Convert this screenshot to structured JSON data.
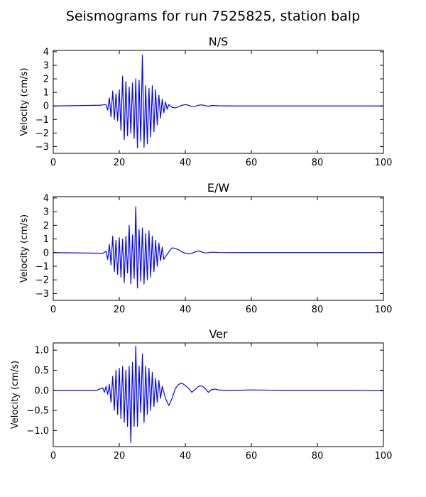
{
  "figure": {
    "title": "Seismograms for run 7525825, station balp"
  },
  "chart_data": [
    {
      "type": "line",
      "title": "N/S",
      "xlabel": "",
      "ylabel": "Velocity (cm/s)",
      "xlim": [
        0,
        100
      ],
      "ylim": [
        -3.5,
        4.1
      ],
      "xticks": [
        0,
        20,
        40,
        60,
        80,
        100
      ],
      "yticks": [
        -3,
        -2,
        -1,
        0,
        1,
        2,
        3,
        4
      ],
      "grid": false,
      "color": "#0000ff",
      "x": [
        0,
        14,
        16,
        16.5,
        17,
        17.5,
        18,
        18.5,
        19,
        19.5,
        20,
        20.5,
        21,
        21.5,
        22,
        22.5,
        23,
        23.5,
        24,
        24.5,
        25,
        25.5,
        26,
        26.5,
        27,
        27.5,
        28,
        28.5,
        29,
        29.5,
        30,
        30.5,
        31,
        31.5,
        32,
        32.5,
        33,
        33.5,
        34,
        34.5,
        35,
        36,
        37,
        38,
        39,
        40,
        41,
        42,
        43,
        44,
        45,
        46,
        47,
        48,
        50,
        55,
        60,
        70,
        80,
        90,
        100
      ],
      "y": [
        0,
        0.05,
        0.1,
        -0.3,
        0.6,
        -0.8,
        1.1,
        -1.0,
        0.9,
        -1.1,
        1.2,
        -1.8,
        2.2,
        -2.5,
        1.8,
        -2.2,
        1.4,
        -2.0,
        1.7,
        -2.4,
        2.0,
        -3.1,
        1.9,
        -2.6,
        3.75,
        -3.05,
        1.5,
        -2.8,
        1.3,
        -2.3,
        1.5,
        -1.9,
        1.2,
        -1.4,
        0.8,
        -0.9,
        0.5,
        -0.5,
        0.3,
        -0.25,
        0.1,
        -0.1,
        -0.15,
        -0.05,
        0.05,
        0.1,
        0.05,
        -0.05,
        -0.03,
        0.05,
        0.08,
        0.02,
        -0.02,
        0.03,
        0.01,
        0,
        0,
        0,
        0,
        0,
        0
      ]
    },
    {
      "type": "line",
      "title": "E/W",
      "xlabel": "",
      "ylabel": "Velocity (cm/s)",
      "xlim": [
        0,
        100
      ],
      "ylim": [
        -3.5,
        4.1
      ],
      "xticks": [
        0,
        20,
        40,
        60,
        80,
        100
      ],
      "yticks": [
        -3,
        -2,
        -1,
        0,
        1,
        2,
        3,
        4
      ],
      "grid": false,
      "color": "#0000ff",
      "x": [
        0,
        15,
        16,
        16.5,
        17,
        17.5,
        18,
        18.5,
        19,
        19.5,
        20,
        20.5,
        21,
        21.5,
        22,
        22.5,
        23,
        23.5,
        24,
        24.5,
        25,
        25.5,
        26,
        26.5,
        27,
        27.5,
        28,
        28.5,
        29,
        29.5,
        30,
        30.5,
        31,
        31.5,
        32,
        32.5,
        33,
        33.5,
        34,
        35,
        36,
        37,
        38,
        39,
        40,
        41,
        42,
        43,
        44,
        45,
        46,
        48,
        50,
        55,
        60,
        70,
        80,
        90,
        100
      ],
      "y": [
        0,
        -0.05,
        0.1,
        -0.5,
        0.6,
        -0.9,
        1.2,
        -1.4,
        0.9,
        -1.6,
        1.1,
        -1.8,
        1.0,
        -2.2,
        1.2,
        -1.5,
        2.0,
        -2.3,
        1.3,
        -1.9,
        3.35,
        -2.6,
        1.7,
        -2.1,
        1.8,
        -2.3,
        1.4,
        -2.0,
        1.6,
        -1.8,
        1.2,
        -1.4,
        0.9,
        -1.0,
        0.7,
        -0.6,
        0.4,
        -0.5,
        -0.3,
        0.05,
        0.35,
        0.3,
        0.2,
        0.05,
        -0.05,
        -0.1,
        -0.05,
        0.05,
        0.12,
        0.05,
        -0.03,
        0.03,
        0.01,
        0,
        0,
        0,
        0,
        0,
        0
      ]
    },
    {
      "type": "line",
      "title": "Ver",
      "xlabel": "",
      "ylabel": "Velocity (cm/s)",
      "xlim": [
        0,
        100
      ],
      "ylim": [
        -1.4,
        1.18
      ],
      "xticks": [
        0,
        20,
        40,
        60,
        80,
        100
      ],
      "yticks": [
        -1.0,
        -0.5,
        0.0,
        0.5,
        1.0
      ],
      "ytick_labels": [
        "−1.0",
        "−0.5",
        "0.0",
        "0.5",
        "1.0"
      ],
      "grid": false,
      "color": "#0000ff",
      "x": [
        0,
        13,
        15,
        15.5,
        16,
        16.5,
        17,
        17.5,
        18,
        18.5,
        19,
        19.5,
        20,
        20.5,
        21,
        21.5,
        22,
        22.5,
        23,
        23.5,
        24,
        24.5,
        25,
        25.5,
        26,
        26.5,
        27,
        27.5,
        28,
        28.5,
        29,
        29.5,
        30,
        30.5,
        31,
        31.5,
        32,
        32.5,
        33,
        34,
        35,
        36,
        37,
        38,
        39,
        40,
        41,
        42,
        43,
        44,
        45,
        46,
        47,
        48,
        49,
        50,
        52,
        55,
        60,
        70,
        80,
        90,
        100
      ],
      "y": [
        0,
        0,
        0.06,
        -0.05,
        0.1,
        -0.1,
        0.15,
        -0.3,
        0.35,
        -0.5,
        0.5,
        -0.6,
        0.55,
        -0.7,
        0.6,
        -0.8,
        0.5,
        -0.9,
        0.6,
        -1.3,
        0.7,
        -0.9,
        1.1,
        -0.9,
        0.6,
        -0.55,
        0.9,
        -0.8,
        0.6,
        -0.6,
        0.55,
        -0.5,
        0.45,
        -0.4,
        0.3,
        -0.3,
        0.25,
        -0.2,
        0.1,
        -0.2,
        -0.38,
        -0.2,
        0.05,
        0.15,
        0.18,
        0.12,
        0.05,
        -0.05,
        0.02,
        0.1,
        0.11,
        0.05,
        -0.05,
        0.02,
        0.03,
        0.01,
        0.0,
        0.0,
        0.01,
        0.0,
        0.0,
        0.0,
        -0.01
      ]
    }
  ]
}
